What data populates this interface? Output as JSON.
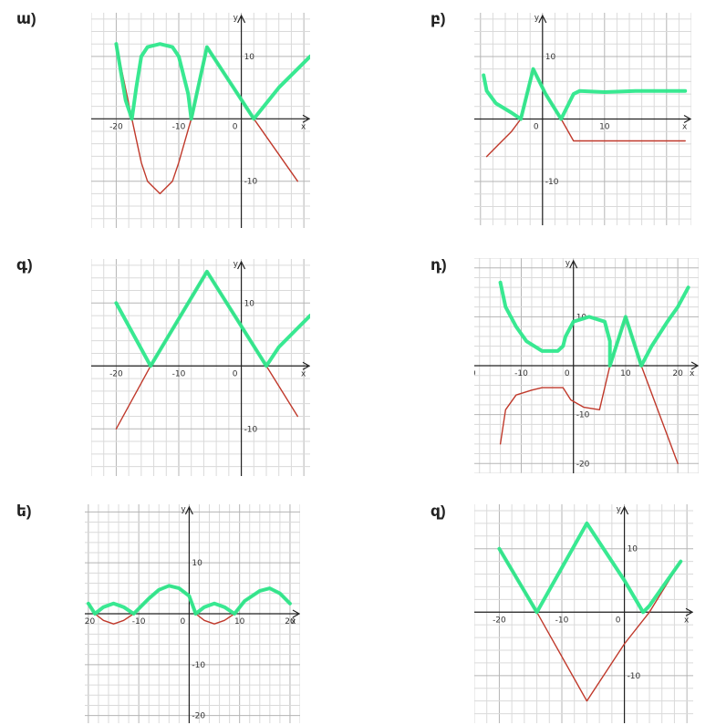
{
  "chart_data": [
    {
      "type": "line",
      "label": "ա)",
      "xlim": [
        -24,
        11
      ],
      "ylim": [
        -17.5,
        17
      ],
      "xticks": [
        -20,
        -10,
        0
      ],
      "yticks": [
        10,
        -10
      ],
      "axis_x": "x",
      "axis_y": "y",
      "grid": true,
      "series": [
        {
          "color": "#c0392b",
          "points": [
            [
              -20,
              12
            ],
            [
              -17.5,
              0
            ],
            [
              -16,
              -7
            ],
            [
              -15,
              -10
            ],
            [
              -13,
              -12
            ],
            [
              -11,
              -10
            ],
            [
              -10,
              -7
            ],
            [
              -8,
              0
            ],
            [
              -5.5,
              11.5
            ],
            [
              2,
              0
            ],
            [
              9,
              -10
            ]
          ]
        },
        {
          "color": "#2ee88c",
          "points": [
            [
              -20,
              12
            ],
            [
              -18.5,
              3
            ],
            [
              -17.5,
              0
            ],
            [
              -16.8,
              5
            ],
            [
              -16,
              10
            ],
            [
              -15,
              11.5
            ],
            [
              -13,
              12
            ],
            [
              -11,
              11.5
            ],
            [
              -10,
              10
            ],
            [
              -8.5,
              4
            ],
            [
              -8,
              0
            ],
            [
              -5.5,
              11.5
            ],
            [
              2,
              0
            ],
            [
              6,
              5
            ],
            [
              9,
              8
            ],
            [
              11,
              10
            ]
          ]
        }
      ]
    },
    {
      "type": "line",
      "label": "բ)",
      "xlim": [
        -11,
        24
      ],
      "ylim": [
        -17,
        17
      ],
      "xticks": [
        0,
        10
      ],
      "yticks": [
        10,
        -10
      ],
      "axis_x": "x",
      "axis_y": "y",
      "grid": true,
      "series": [
        {
          "color": "#c0392b",
          "points": [
            [
              -9,
              -6
            ],
            [
              -7,
              -4
            ],
            [
              -5,
              -2
            ],
            [
              -3.5,
              0
            ],
            [
              -1.5,
              8
            ],
            [
              0.5,
              4
            ],
            [
              3,
              0
            ],
            [
              5,
              -3.5
            ],
            [
              23,
              -3.5
            ]
          ]
        },
        {
          "color": "#2ee88c",
          "points": [
            [
              -9.5,
              7
            ],
            [
              -9,
              4.5
            ],
            [
              -7.5,
              2.5
            ],
            [
              -5,
              1
            ],
            [
              -3.5,
              0
            ],
            [
              -1.5,
              8
            ],
            [
              0.5,
              4
            ],
            [
              3,
              0
            ],
            [
              5,
              4
            ],
            [
              6,
              4.5
            ],
            [
              10,
              4.3
            ],
            [
              15,
              4.5
            ],
            [
              23,
              4.5
            ]
          ]
        }
      ]
    },
    {
      "type": "line",
      "label": "գ)",
      "xlim": [
        -24,
        11
      ],
      "ylim": [
        -17.5,
        17
      ],
      "xticks": [
        -20,
        -10,
        0
      ],
      "yticks": [
        10,
        -10
      ],
      "axis_x": "x",
      "axis_y": "y",
      "grid": true,
      "series": [
        {
          "color": "#c0392b",
          "points": [
            [
              -20,
              -10
            ],
            [
              -14.5,
              0
            ],
            [
              -5.5,
              15
            ],
            [
              4,
              0
            ],
            [
              9,
              -8
            ]
          ]
        },
        {
          "color": "#2ee88c",
          "points": [
            [
              -20,
              10
            ],
            [
              -14.5,
              0
            ],
            [
              -5.5,
              15
            ],
            [
              4,
              0
            ],
            [
              6,
              3
            ],
            [
              9,
              6
            ],
            [
              11,
              8
            ]
          ]
        }
      ]
    },
    {
      "type": "line",
      "label": "դ)",
      "xlim": [
        -19,
        24
      ],
      "ylim": [
        -22,
        22
      ],
      "xticks": [
        -20,
        -10,
        0,
        10,
        20
      ],
      "yticks": [
        10,
        -10,
        -20
      ],
      "axis_x": "x",
      "axis_y": "y",
      "grid": true,
      "series": [
        {
          "color": "#c0392b",
          "points": [
            [
              -14,
              -16
            ],
            [
              -13,
              -9
            ],
            [
              -11,
              -6
            ],
            [
              -8,
              -5
            ],
            [
              -6,
              -4.5
            ],
            [
              -2,
              -4.5
            ],
            [
              -0.5,
              -7
            ],
            [
              2,
              -8.5
            ],
            [
              5,
              -9
            ],
            [
              7,
              0
            ],
            [
              10,
              10
            ],
            [
              13,
              0
            ],
            [
              20,
              -20
            ]
          ]
        },
        {
          "color": "#2ee88c",
          "points": [
            [
              -14,
              17
            ],
            [
              -13,
              12
            ],
            [
              -11,
              8
            ],
            [
              -9,
              5
            ],
            [
              -6,
              3
            ],
            [
              -3,
              3
            ],
            [
              -2,
              4
            ],
            [
              -1.5,
              6
            ],
            [
              0,
              9
            ],
            [
              3,
              10
            ],
            [
              6,
              9
            ],
            [
              7,
              5
            ],
            [
              7,
              0
            ],
            [
              10,
              10
            ],
            [
              13,
              0
            ],
            [
              15,
              4
            ],
            [
              18,
              9
            ],
            [
              20,
              12
            ],
            [
              22,
              16
            ]
          ]
        }
      ]
    },
    {
      "type": "line",
      "label": "ե)",
      "xlim": [
        -20.7,
        22
      ],
      "ylim": [
        -21.5,
        21.5
      ],
      "xticks": [
        -20,
        -10,
        0,
        10,
        20
      ],
      "yticks": [
        10,
        -10,
        -20
      ],
      "axis_x": "x",
      "axis_y": "y",
      "grid": true,
      "series": [
        {
          "color": "#c0392b",
          "points": [
            [
              -20,
              2
            ],
            [
              -18.7,
              0
            ],
            [
              -17,
              -1.3
            ],
            [
              -15,
              -2
            ],
            [
              -13,
              -1.3
            ],
            [
              -11,
              0
            ],
            [
              -8,
              3
            ],
            [
              -6,
              4.7
            ],
            [
              -4,
              5.5
            ],
            [
              -2,
              5
            ],
            [
              0,
              3.5
            ],
            [
              1.3,
              0
            ],
            [
              3,
              -1.3
            ],
            [
              5,
              -2
            ],
            [
              7,
              -1.3
            ],
            [
              9,
              0
            ],
            [
              11,
              2.5
            ],
            [
              14,
              4.5
            ],
            [
              16,
              5
            ],
            [
              18,
              4
            ],
            [
              20,
              2
            ]
          ]
        },
        {
          "color": "#2ee88c",
          "points": [
            [
              -20,
              2
            ],
            [
              -18.7,
              0
            ],
            [
              -17,
              1.3
            ],
            [
              -15,
              2
            ],
            [
              -13,
              1.3
            ],
            [
              -11,
              0
            ],
            [
              -8,
              3
            ],
            [
              -6,
              4.7
            ],
            [
              -4,
              5.5
            ],
            [
              -2,
              5
            ],
            [
              0,
              3.5
            ],
            [
              1.3,
              0
            ],
            [
              3,
              1.3
            ],
            [
              5,
              2
            ],
            [
              7,
              1.3
            ],
            [
              9,
              0
            ],
            [
              11,
              2.5
            ],
            [
              14,
              4.5
            ],
            [
              16,
              5
            ],
            [
              18,
              4
            ],
            [
              20,
              2
            ]
          ]
        }
      ]
    },
    {
      "type": "line",
      "label": "զ)",
      "xlim": [
        -24,
        11
      ],
      "ylim": [
        -17.5,
        17
      ],
      "xticks": [
        -20,
        -10,
        0
      ],
      "yticks": [
        10,
        -10
      ],
      "axis_x": "x",
      "axis_y": "y",
      "grid": true,
      "series": [
        {
          "color": "#c0392b",
          "points": [
            [
              -20,
              10
            ],
            [
              -14,
              0
            ],
            [
              -6,
              -14
            ],
            [
              0,
              -5
            ],
            [
              4,
              0
            ],
            [
              9,
              8
            ]
          ]
        },
        {
          "color": "#2ee88c",
          "points": [
            [
              -20,
              10
            ],
            [
              -14,
              0
            ],
            [
              -6,
              14
            ],
            [
              0,
              5
            ],
            [
              3,
              0
            ],
            [
              4,
              1
            ],
            [
              9,
              8
            ]
          ]
        }
      ]
    }
  ]
}
